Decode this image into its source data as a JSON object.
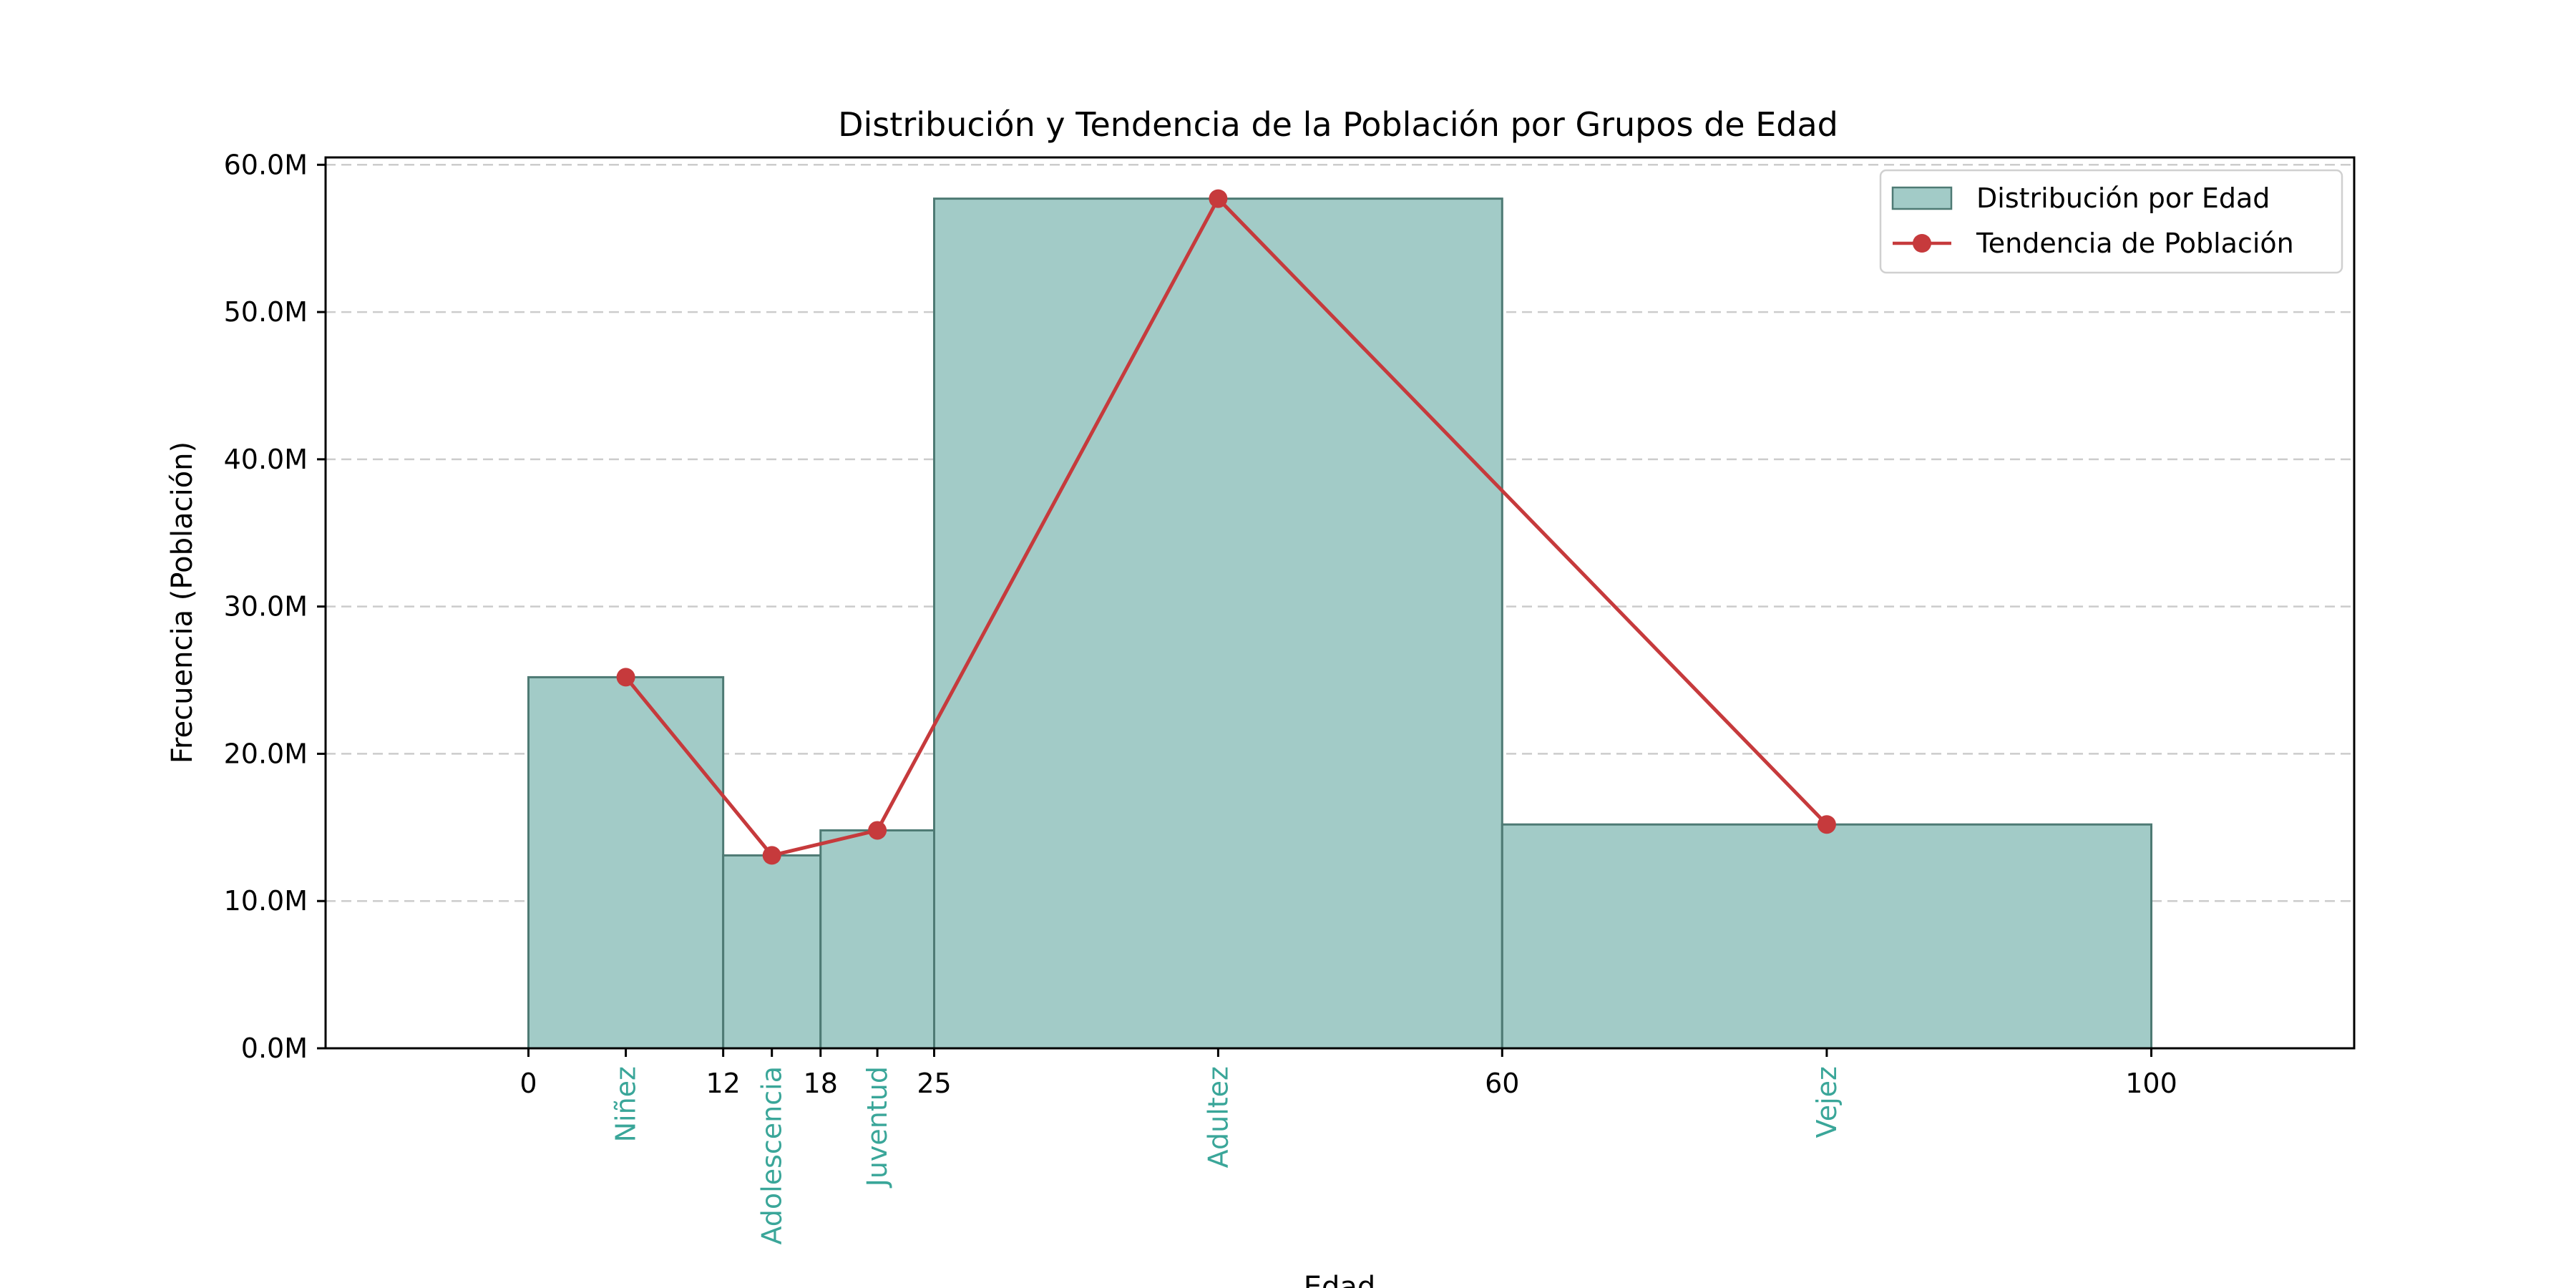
{
  "chart_data": {
    "type": "bar",
    "title": "Distribución y Tendencia de la Población por Grupos de Edad",
    "xlabel": "Edad",
    "ylabel": "Frecuencia (Población)",
    "xlim": [
      -12.5,
      112.5
    ],
    "ylim": [
      0,
      60500000
    ],
    "grid": "horizontal-dashed",
    "legend_position": "top-right",
    "x_ticks": [
      0,
      12,
      18,
      25,
      60,
      100
    ],
    "y_ticks": [
      0,
      10000000,
      20000000,
      30000000,
      40000000,
      50000000,
      60000000
    ],
    "y_tick_labels": [
      "0.0M",
      "10.0M",
      "20.0M",
      "30.0M",
      "40.0M",
      "50.0M",
      "60.0M"
    ],
    "bins": [
      {
        "group": "Niñez",
        "start": 0,
        "end": 12,
        "value": 25200000
      },
      {
        "group": "Adolescencia",
        "start": 12,
        "end": 18,
        "value": 13100000
      },
      {
        "group": "Juventud",
        "start": 18,
        "end": 25,
        "value": 14800000
      },
      {
        "group": "Adultez",
        "start": 25,
        "end": 60,
        "value": 57700000
      },
      {
        "group": "Vejez",
        "start": 60,
        "end": 100,
        "value": 15200000
      }
    ],
    "series": [
      {
        "name": "Distribución por Edad",
        "kind": "histogram",
        "color": "#a2cbc7",
        "edge_color": "#4e7a74"
      },
      {
        "name": "Tendencia de Población",
        "kind": "line",
        "color": "#c63a3c",
        "x": [
          6,
          15,
          21.5,
          42.5,
          80
        ],
        "values": [
          25200000,
          13100000,
          14800000,
          57700000,
          15200000
        ]
      }
    ],
    "group_label_color": "#3aa699"
  }
}
